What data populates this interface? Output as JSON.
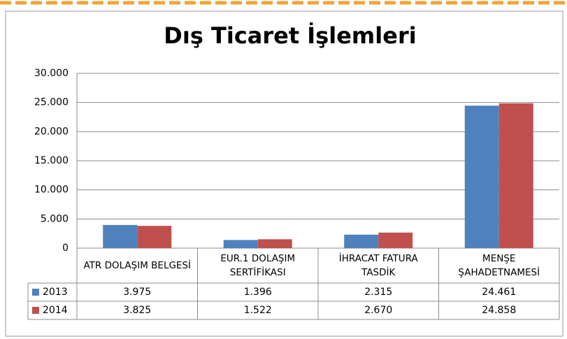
{
  "chart_data": {
    "type": "bar",
    "title": "Dış Ticaret İşlemleri",
    "categories": [
      "ATR DOLAŞIM BELGESİ",
      "EUR.1 DOLAŞIM SERTİFİKASI",
      "İHRACAT FATURA TASDİK",
      "MENŞE ŞAHADETNAMESİ"
    ],
    "series": [
      {
        "name": "2013",
        "color": "#4f81bd",
        "values": [
          3975,
          1396,
          2315,
          24461
        ],
        "value_labels": [
          "3.975",
          "1.396",
          "2.315",
          "24.461"
        ]
      },
      {
        "name": "2014",
        "color": "#c0504d",
        "values": [
          3825,
          1522,
          2670,
          24858
        ],
        "value_labels": [
          "3.825",
          "1.522",
          "2.670",
          "24.858"
        ]
      }
    ],
    "ylim": [
      0,
      30000
    ],
    "yticks": [
      0,
      {
        "value": 5000,
        "label": "5.000"
      },
      {
        "value": 10000,
        "label": "10.000"
      },
      {
        "value": 15000,
        "label": "15.000"
      },
      {
        "value": 20000,
        "label": "20.000"
      },
      {
        "value": 25000,
        "label": "25.000"
      },
      {
        "value": 30000,
        "label": "30.000"
      }
    ],
    "grid": true,
    "data_table": true
  }
}
